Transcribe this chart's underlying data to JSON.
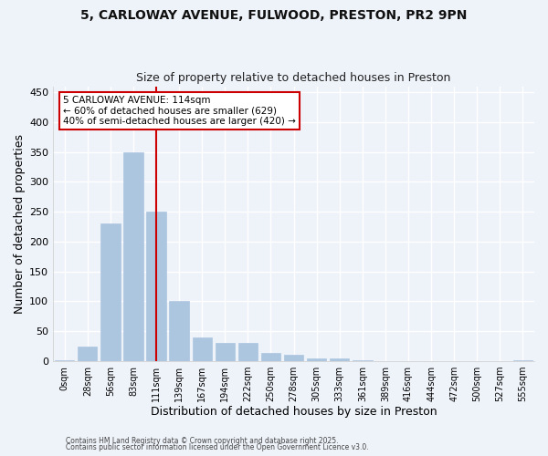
{
  "title_line1": "5, CARLOWAY AVENUE, FULWOOD, PRESTON, PR2 9PN",
  "title_line2": "Size of property relative to detached houses in Preston",
  "xlabel": "Distribution of detached houses by size in Preston",
  "ylabel": "Number of detached properties",
  "categories": [
    "0sqm",
    "28sqm",
    "56sqm",
    "83sqm",
    "111sqm",
    "139sqm",
    "167sqm",
    "194sqm",
    "222sqm",
    "250sqm",
    "278sqm",
    "305sqm",
    "333sqm",
    "361sqm",
    "389sqm",
    "416sqm",
    "444sqm",
    "472sqm",
    "500sqm",
    "527sqm",
    "555sqm"
  ],
  "values": [
    2,
    25,
    230,
    350,
    250,
    100,
    40,
    30,
    30,
    13,
    10,
    5,
    5,
    1,
    0,
    0,
    0,
    0,
    0,
    0,
    2
  ],
  "bar_color": "#adc6e0",
  "bar_edge_color": "#adc6e0",
  "property_bar_index": 4,
  "property_line_color": "#cc0000",
  "ylim": [
    0,
    460
  ],
  "yticks": [
    0,
    50,
    100,
    150,
    200,
    250,
    300,
    350,
    400,
    450
  ],
  "annotation_line1": "5 CARLOWAY AVENUE: 114sqm",
  "annotation_line2": "← 60% of detached houses are smaller (629)",
  "annotation_line3": "40% of semi-detached houses are larger (420) →",
  "annotation_box_color": "#ffffff",
  "annotation_box_edge": "#cc0000",
  "footer_line1": "Contains HM Land Registry data © Crown copyright and database right 2025.",
  "footer_line2": "Contains public sector information licensed under the Open Government Licence v3.0.",
  "bg_color": "#eef2f9",
  "grid_color": "#ffffff"
}
